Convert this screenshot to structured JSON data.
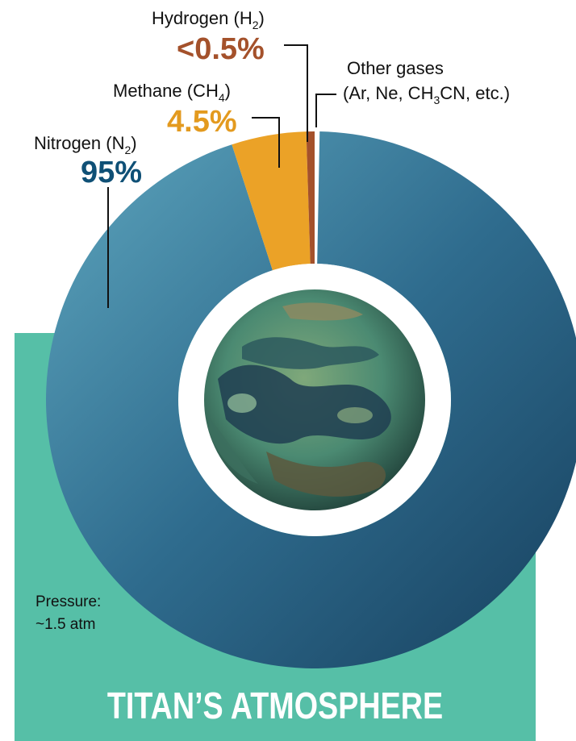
{
  "chart_data": {
    "type": "pie",
    "title": "TITAN’S ATMOSPHERE",
    "categories": [
      "Nitrogen",
      "Methane",
      "Hydrogen",
      "Other gases"
    ],
    "series": [
      {
        "values": [
          95,
          4.5,
          0.5,
          0.3
        ]
      }
    ],
    "slices": [
      {
        "formula_base": "Nitrogen (N",
        "formula_sub": "2",
        "formula_tail": ")",
        "percent_label": "95%",
        "value": 95,
        "color": "#2e6a8e"
      },
      {
        "formula_base": "Methane (CH",
        "formula_sub": "4",
        "formula_tail": ")",
        "percent_label": "4.5%",
        "value": 4.5,
        "color": "#eba227"
      },
      {
        "formula_base": "Hydrogen (H",
        "formula_sub": "2",
        "formula_tail": ")",
        "percent_label": "<0.5%",
        "value": 0.5,
        "color": "#a4512b"
      },
      {
        "line1": "Other gases",
        "line2_base": "(Ar, Ne, CH",
        "line2_sub": "3",
        "line2_tail": "CN, etc.)",
        "value": 0.3,
        "color": "#ffffff"
      }
    ],
    "label_colors": {
      "nitrogen": "#0f5076",
      "methane": "#e39a1f",
      "hydrogen": "#a4512b"
    }
  },
  "pressure": {
    "line1": "Pressure:",
    "line2": "~1.5 atm"
  },
  "footer": {
    "title": "TITAN’S ATMOSPHERE"
  }
}
